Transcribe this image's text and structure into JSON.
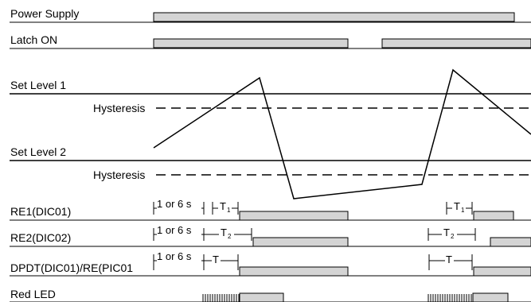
{
  "signals": {
    "power_supply": "Power Supply",
    "latch_on": "Latch ON",
    "set_level_1": "Set Level 1",
    "set_level_2": "Set Level 2",
    "hysteresis": "Hysteresis",
    "re1": "RE1(DIC01)",
    "re2": "RE2(DIC02)",
    "dpdt": "DPDT(DIC01)/RE(PIC01",
    "red_led": "Red LED"
  },
  "timing": {
    "delay": "1 or 6 s",
    "t": "T",
    "t_prefix": "T",
    "sub_1": "1",
    "sub_2": "2"
  }
}
